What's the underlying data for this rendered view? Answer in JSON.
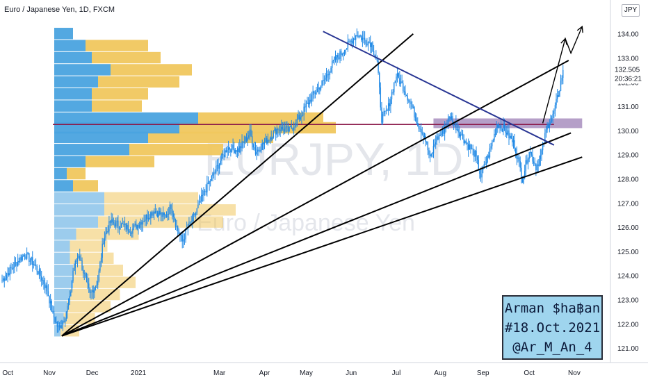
{
  "header": {
    "title": "Euro / Japanese Yen, 1D, FXCM"
  },
  "currency_badge": "JPY",
  "watermark": {
    "symbol": "EURJPY, 1D",
    "name": "Euro / Japanese Yen"
  },
  "author_box": {
    "line1": "Arman $ha฿an",
    "line2": "#18.Oct.2021",
    "line3": "@Ar_M_An_4"
  },
  "colors": {
    "up_candle": "#1e88e5",
    "down_candle": "#1e88e5",
    "trendline": "#000000",
    "downtrend": "#283593",
    "resistance": "#8b1a4a",
    "zone": "#9c7fb5",
    "vp_buy": "#4aa3df",
    "vp_sell": "#f0c75e",
    "author_bg": "#9fd5ee"
  },
  "chart_data": {
    "type": "candlestick",
    "title": "Euro / Japanese Yen, 1D, FXCM",
    "y_axis": {
      "ticks": [
        121.0,
        122.0,
        123.0,
        124.0,
        125.0,
        126.0,
        127.0,
        128.0,
        129.0,
        130.0,
        131.0,
        132.0,
        133.0,
        134.0
      ],
      "range": [
        120.4,
        135.4
      ]
    },
    "x_axis": {
      "labels": [
        "Oct",
        "Nov",
        "Dec",
        "2021",
        "Mar",
        "Apr",
        "May",
        "Jun",
        "Jul",
        "Aug",
        "Sep",
        "Oct",
        "Nov"
      ]
    },
    "current_price": {
      "value": "132.505",
      "countdown": "20:36:21"
    },
    "price_path": [
      [
        0,
        123.8
      ],
      [
        10,
        124.4
      ],
      [
        20,
        124.9
      ],
      [
        28,
        124.5
      ],
      [
        34,
        124.0
      ],
      [
        40,
        123.4
      ],
      [
        45,
        122.4
      ],
      [
        50,
        121.8
      ],
      [
        55,
        122.2
      ],
      [
        60,
        123.0
      ],
      [
        63,
        124.2
      ],
      [
        68,
        124.9
      ],
      [
        73,
        124.0
      ],
      [
        78,
        123.2
      ],
      [
        85,
        123.8
      ],
      [
        90,
        125.5
      ],
      [
        96,
        126.2
      ],
      [
        105,
        126.1
      ],
      [
        115,
        125.9
      ],
      [
        125,
        126.3
      ],
      [
        135,
        126.7
      ],
      [
        145,
        126.4
      ],
      [
        150,
        126.9
      ],
      [
        155,
        126.0
      ],
      [
        160,
        125.4
      ],
      [
        165,
        126.0
      ],
      [
        172,
        126.6
      ],
      [
        180,
        127.5
      ],
      [
        190,
        128.4
      ],
      [
        200,
        129.3
      ],
      [
        210,
        129.2
      ],
      [
        220,
        129.9
      ],
      [
        225,
        129.1
      ],
      [
        235,
        129.6
      ],
      [
        245,
        130.1
      ],
      [
        255,
        130.0
      ],
      [
        265,
        130.6
      ],
      [
        275,
        131.4
      ],
      [
        285,
        132.0
      ],
      [
        295,
        132.9
      ],
      [
        305,
        133.4
      ],
      [
        315,
        134.0
      ],
      [
        320,
        133.8
      ],
      [
        328,
        133.6
      ],
      [
        333,
        132.8
      ],
      [
        337,
        130.5
      ],
      [
        342,
        130.8
      ],
      [
        350,
        132.3
      ],
      [
        356,
        131.8
      ],
      [
        362,
        131.2
      ],
      [
        370,
        130.2
      ],
      [
        375,
        129.8
      ],
      [
        380,
        128.8
      ],
      [
        385,
        129.6
      ],
      [
        392,
        130.0
      ],
      [
        398,
        130.6
      ],
      [
        405,
        130.0
      ],
      [
        412,
        129.5
      ],
      [
        420,
        129.0
      ],
      [
        425,
        128.1
      ],
      [
        432,
        129.0
      ],
      [
        440,
        130.3
      ],
      [
        447,
        130.0
      ],
      [
        455,
        129.4
      ],
      [
        462,
        128.0
      ],
      [
        468,
        129.2
      ],
      [
        474,
        128.5
      ],
      [
        478,
        128.9
      ],
      [
        484,
        130.2
      ],
      [
        489,
        130.6
      ],
      [
        494,
        131.5
      ],
      [
        498,
        132.5
      ]
    ],
    "trendlines": [
      {
        "name": "fan-line-1",
        "from": [
          53,
          121.5
        ],
        "to": [
          365,
          134.0
        ]
      },
      {
        "name": "fan-line-2",
        "from": [
          53,
          121.5
        ],
        "to": [
          503,
          132.9
        ]
      },
      {
        "name": "fan-line-3",
        "from": [
          53,
          121.5
        ],
        "to": [
          505,
          129.9
        ]
      },
      {
        "name": "fan-line-4",
        "from": [
          53,
          121.5
        ],
        "to": [
          515,
          128.9
        ]
      },
      {
        "name": "downtrend",
        "from": [
          285,
          134.1
        ],
        "to": [
          490,
          129.4
        ]
      }
    ],
    "resistance_level": 130.25,
    "resistance_zone": [
      130.1,
      130.5
    ],
    "projection": [
      [
        480,
        130.3
      ],
      [
        484,
        131.0
      ],
      [
        500,
        133.8
      ],
      [
        505,
        133.2
      ],
      [
        515,
        134.3
      ]
    ],
    "volume_profile": [
      [
        121.7,
        2,
        6
      ],
      [
        122.2,
        3,
        10
      ],
      [
        122.7,
        4,
        14
      ],
      [
        123.2,
        5,
        16
      ],
      [
        123.7,
        6,
        20
      ],
      [
        124.2,
        6,
        16
      ],
      [
        124.7,
        5,
        14
      ],
      [
        125.2,
        5,
        12
      ],
      [
        125.7,
        7,
        20
      ],
      [
        126.2,
        14,
        40
      ],
      [
        126.7,
        16,
        42
      ],
      [
        127.2,
        16,
        30
      ],
      [
        127.7,
        6,
        8
      ],
      [
        128.2,
        4,
        6
      ],
      [
        128.7,
        10,
        22
      ],
      [
        129.2,
        24,
        30
      ],
      [
        129.7,
        30,
        40
      ],
      [
        130.1,
        40,
        50
      ],
      [
        130.5,
        46,
        40
      ],
      [
        131.0,
        12,
        16
      ],
      [
        131.5,
        12,
        18
      ],
      [
        132.0,
        14,
        26
      ],
      [
        132.5,
        18,
        26
      ],
      [
        133.0,
        12,
        22
      ],
      [
        133.5,
        10,
        20
      ],
      [
        134.0,
        6,
        0
      ]
    ]
  }
}
